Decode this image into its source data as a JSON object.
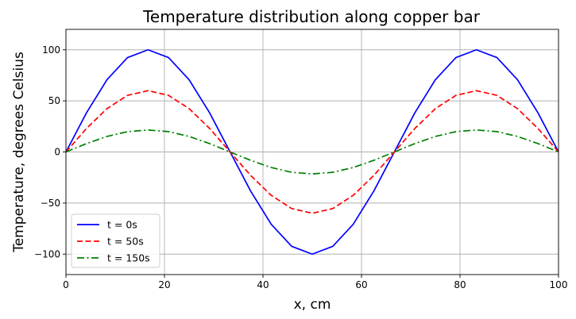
{
  "chart_data": {
    "type": "line",
    "title": "Temperature distribution along copper bar",
    "xlabel": "x, cm",
    "ylabel": "Temperature, degrees Celsius",
    "xlim": [
      0,
      100
    ],
    "ylim": [
      -120,
      120
    ],
    "xticks": [
      0,
      20,
      40,
      60,
      80,
      100
    ],
    "yticks": [
      -100,
      -50,
      0,
      50,
      100
    ],
    "xtick_labels": [
      "0",
      "20",
      "40",
      "60",
      "80",
      "100"
    ],
    "ytick_labels": [
      "−100",
      "−50",
      "0",
      "50",
      "100"
    ],
    "grid": true,
    "legend_position": "lower-left",
    "x": [
      0,
      4.17,
      8.33,
      12.5,
      16.67,
      20.83,
      25,
      29.17,
      33.33,
      37.5,
      41.67,
      45.83,
      50,
      54.17,
      58.33,
      62.5,
      66.67,
      70.83,
      75,
      79.17,
      83.33,
      87.5,
      91.67,
      95.83,
      100
    ],
    "series": [
      {
        "name": "t = 0s",
        "color": "#0000ff",
        "style": "solid",
        "values": [
          0,
          38.3,
          70.7,
          92.4,
          100,
          92.4,
          70.7,
          38.3,
          0,
          -38.3,
          -70.7,
          -92.4,
          -100,
          -92.4,
          -70.7,
          -38.3,
          0,
          38.3,
          70.7,
          92.4,
          100,
          92.4,
          70.7,
          38.3,
          0
        ]
      },
      {
        "name": "t = 50s",
        "color": "#ff0000",
        "style": "dashed",
        "values": [
          0,
          23,
          42.4,
          55.4,
          60,
          55.4,
          42.4,
          23,
          0,
          -23,
          -42.4,
          -55.4,
          -60,
          -55.4,
          -42.4,
          -23,
          0,
          23,
          42.4,
          55.4,
          60,
          55.4,
          42.4,
          23,
          0
        ]
      },
      {
        "name": "t = 150s",
        "color": "#008000",
        "style": "dashdot",
        "values": [
          0,
          8.2,
          15.2,
          19.9,
          21.5,
          19.9,
          15.2,
          8.2,
          0,
          -8.2,
          -15.2,
          -19.9,
          -21.5,
          -19.9,
          -15.2,
          -8.2,
          0,
          8.2,
          15.2,
          19.9,
          21.5,
          19.9,
          15.2,
          8.2,
          0
        ]
      }
    ]
  }
}
